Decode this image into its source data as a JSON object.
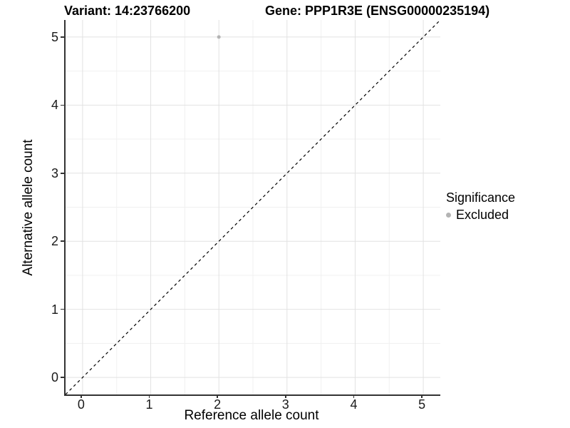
{
  "header": {
    "variant_title": "Variant: 14:23766200",
    "gene_title": "Gene: PPP1R3E (ENSG00000235194)"
  },
  "legend": {
    "title": "Significance",
    "items": [
      {
        "label": "Excluded",
        "color": "#b4b4b4"
      }
    ]
  },
  "chart_data": {
    "type": "scatter",
    "title_left": "Variant: 14:23766200",
    "title_right": "Gene: PPP1R3E (ENSG00000235194)",
    "xlabel": "Reference allele count",
    "ylabel": "Alternative allele count",
    "xlim": [
      -0.25,
      5.25
    ],
    "ylim": [
      -0.25,
      5.25
    ],
    "xticks": [
      0,
      1,
      2,
      3,
      4,
      5
    ],
    "yticks": [
      0,
      1,
      2,
      3,
      4,
      5
    ],
    "xticks_minor": [
      0.5,
      1.5,
      2.5,
      3.5,
      4.5
    ],
    "yticks_minor": [
      0.5,
      1.5,
      2.5,
      3.5,
      4.5
    ],
    "grid": true,
    "legend_position": "right",
    "series": [
      {
        "name": "Excluded",
        "points": [
          {
            "x": 2,
            "y": 5
          }
        ],
        "color": "#b4b4b4",
        "marker_radius": 2.5
      }
    ],
    "abline": {
      "slope": 1,
      "intercept": 0,
      "style": "dashed",
      "color": "#000000"
    },
    "colors": {
      "background": "#ffffff",
      "grid_major": "#e2e2e2",
      "grid_minor": "#f0f0f0",
      "axis_line": "#333333",
      "tick_text": "#1a1a1a"
    }
  }
}
